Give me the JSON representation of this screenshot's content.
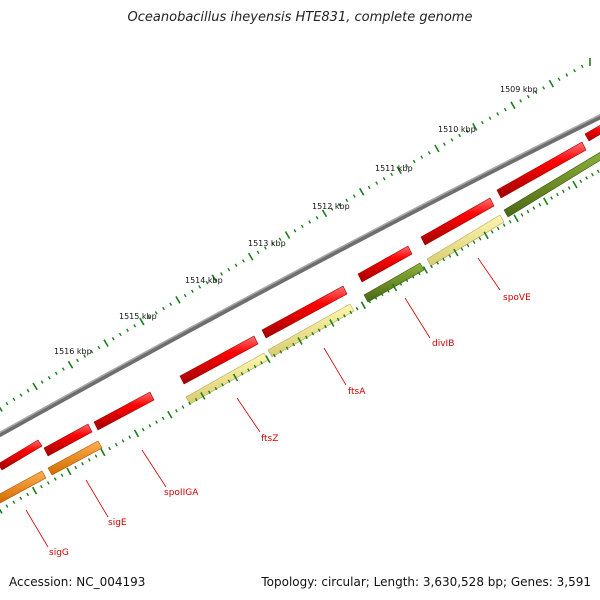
{
  "title": "Oceanobacillus iheyensis HTE831, complete genome",
  "footer": {
    "accession": "Accession: NC_004193",
    "info": "Topology: circular; Length: 3,630,528 bp; Genes: 3,591"
  },
  "scale_labels": [
    "1509 kbp",
    "1510 kbp",
    "1511 kbp",
    "1512 kbp",
    "1513 kbp",
    "1514 kbp",
    "1515 kbp",
    "1516 kbp"
  ],
  "gene_labels": [
    "spoVE",
    "divIB",
    "ftsA",
    "ftsZ",
    "spoIIGA",
    "sigE",
    "sigG"
  ],
  "colors": {
    "backbone": "#7a7a7a",
    "gene_red": "#ee0000",
    "gene_red_dark": "#b00000",
    "gene_orange": "#ff8c00",
    "gene_yellow": "#f0e68c",
    "gene_olive": "#6b8e23",
    "tick_green": "#1a7f1a",
    "label_red": "#cc0000"
  }
}
